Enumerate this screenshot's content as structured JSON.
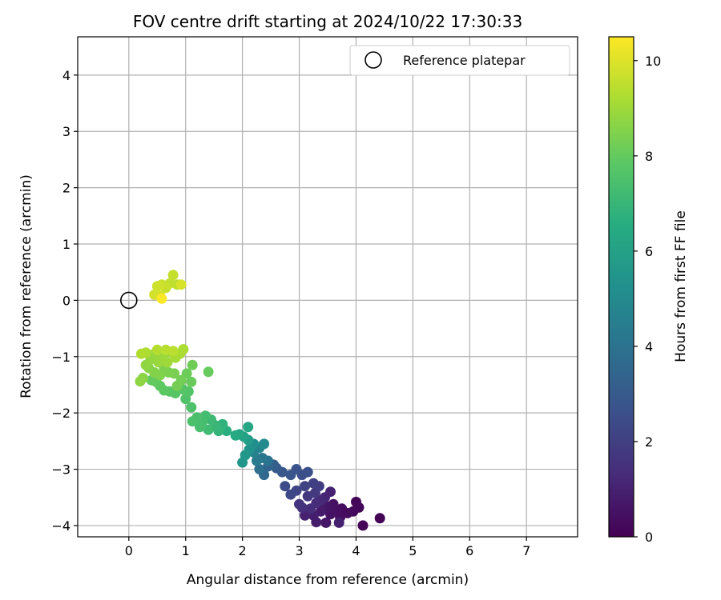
{
  "chart_data": {
    "type": "scatter",
    "title": "FOV centre drift starting at 2024/10/22 17:30:33",
    "xlabel": "Angular distance from reference (arcmin)",
    "ylabel": "Rotation from reference (arcmin)",
    "xlim": [
      -0.9,
      7.9
    ],
    "ylim": [
      -4.2,
      4.68
    ],
    "xticks": [
      "0",
      "1",
      "2",
      "3",
      "4",
      "5",
      "6",
      "7"
    ],
    "yticks": [
      "−4",
      "−3",
      "−2",
      "−1",
      "0",
      "1",
      "2",
      "3",
      "4"
    ],
    "grid": true,
    "legend": {
      "position": "top-right",
      "entries": [
        "Reference platepar"
      ]
    },
    "reference_point": {
      "x": 0,
      "y": 0
    },
    "colorbar": {
      "label": "Hours from first FF file",
      "colormap": "viridis",
      "range": [
        0,
        10.5
      ],
      "ticks": [
        "0",
        "2",
        "4",
        "6",
        "8",
        "10"
      ]
    },
    "points": [
      [
        4.42,
        -3.87,
        0.05
      ],
      [
        4.12,
        -4.0,
        0.1
      ],
      [
        4.0,
        -3.58,
        0.15
      ],
      [
        4.05,
        -3.68,
        0.2
      ],
      [
        3.95,
        -3.75,
        0.25
      ],
      [
        3.85,
        -3.78,
        0.3
      ],
      [
        3.75,
        -3.7,
        0.35
      ],
      [
        3.72,
        -3.85,
        0.4
      ],
      [
        3.66,
        -3.72,
        0.45
      ],
      [
        3.6,
        -3.62,
        0.5
      ],
      [
        3.55,
        -3.8,
        0.55
      ],
      [
        3.5,
        -3.66,
        0.6
      ],
      [
        3.47,
        -3.95,
        0.65
      ],
      [
        3.42,
        -3.6,
        0.7
      ],
      [
        3.38,
        -3.75,
        0.8
      ],
      [
        3.3,
        -3.94,
        0.85
      ],
      [
        3.25,
        -3.82,
        0.9
      ],
      [
        3.7,
        -3.95,
        0.95
      ],
      [
        3.1,
        -3.82,
        1.0
      ],
      [
        3.55,
        -3.4,
        1.05
      ],
      [
        3.45,
        -3.5,
        1.1
      ],
      [
        3.38,
        -3.55,
        1.2
      ],
      [
        3.3,
        -3.6,
        1.3
      ],
      [
        3.2,
        -3.7,
        1.4
      ],
      [
        3.05,
        -3.68,
        1.5
      ],
      [
        3.0,
        -3.62,
        1.6
      ],
      [
        3.15,
        -3.48,
        1.7
      ],
      [
        3.28,
        -3.42,
        1.8
      ],
      [
        3.35,
        -3.3,
        1.9
      ],
      [
        3.25,
        -3.25,
        2.0
      ],
      [
        3.1,
        -3.3,
        2.1
      ],
      [
        2.95,
        -3.38,
        2.2
      ],
      [
        2.85,
        -3.45,
        2.3
      ],
      [
        2.75,
        -3.3,
        2.4
      ],
      [
        3.05,
        -3.1,
        2.5
      ],
      [
        3.15,
        -3.05,
        2.6
      ],
      [
        2.95,
        -3.0,
        2.7
      ],
      [
        2.85,
        -3.1,
        2.8
      ],
      [
        2.7,
        -3.05,
        2.9
      ],
      [
        2.6,
        -2.98,
        3.0
      ],
      [
        2.55,
        -2.92,
        3.2
      ],
      [
        2.45,
        -2.95,
        3.4
      ],
      [
        2.38,
        -3.1,
        3.6
      ],
      [
        2.3,
        -3.0,
        3.8
      ],
      [
        2.45,
        -2.85,
        4.0
      ],
      [
        2.35,
        -2.8,
        4.2
      ],
      [
        2.25,
        -2.85,
        4.4
      ],
      [
        2.2,
        -2.7,
        4.6
      ],
      [
        2.3,
        -2.62,
        4.8
      ],
      [
        2.38,
        -2.55,
        5.0
      ],
      [
        2.2,
        -2.55,
        5.2
      ],
      [
        2.12,
        -2.65,
        5.4
      ],
      [
        2.0,
        -2.88,
        5.5
      ],
      [
        2.05,
        -2.75,
        5.6
      ],
      [
        2.1,
        -2.48,
        5.8
      ],
      [
        2.02,
        -2.42,
        6.0
      ],
      [
        1.95,
        -2.38,
        6.2
      ],
      [
        2.1,
        -2.25,
        6.3
      ],
      [
        1.88,
        -2.4,
        6.4
      ],
      [
        1.72,
        -2.32,
        6.6
      ],
      [
        1.65,
        -2.2,
        6.8
      ],
      [
        1.58,
        -2.32,
        6.9
      ],
      [
        1.52,
        -2.22,
        7.0
      ],
      [
        1.45,
        -2.12,
        7.1
      ],
      [
        1.4,
        -2.3,
        7.2
      ],
      [
        1.35,
        -2.05,
        7.3
      ],
      [
        1.3,
        -2.15,
        7.35
      ],
      [
        1.25,
        -2.25,
        7.4
      ],
      [
        1.2,
        -2.08,
        7.45
      ],
      [
        1.12,
        -2.15,
        7.5
      ],
      [
        1.1,
        -1.9,
        7.55
      ],
      [
        1.0,
        -1.75,
        7.6
      ],
      [
        1.05,
        -1.62,
        7.65
      ],
      [
        0.95,
        -1.58,
        7.7
      ],
      [
        0.82,
        -1.65,
        7.75
      ],
      [
        0.72,
        -1.62,
        7.8
      ],
      [
        0.62,
        -1.6,
        7.85
      ],
      [
        0.55,
        -1.52,
        7.9
      ],
      [
        0.48,
        -1.45,
        7.95
      ],
      [
        0.4,
        -1.42,
        8.0
      ],
      [
        1.4,
        -1.27,
        8.05
      ],
      [
        1.1,
        -1.45,
        8.1
      ],
      [
        1.02,
        -1.3,
        8.15
      ],
      [
        1.12,
        -1.15,
        8.2
      ],
      [
        0.92,
        -1.42,
        8.25
      ],
      [
        0.85,
        -1.52,
        8.3
      ],
      [
        0.8,
        -1.3,
        8.35
      ],
      [
        0.7,
        -1.28,
        8.4
      ],
      [
        0.62,
        -1.2,
        8.45
      ],
      [
        0.55,
        -1.33,
        8.5
      ],
      [
        0.45,
        -1.28,
        8.55
      ],
      [
        0.35,
        -1.2,
        8.6
      ],
      [
        0.25,
        -1.38,
        8.65
      ],
      [
        0.2,
        -1.44,
        8.7
      ],
      [
        0.3,
        -1.15,
        8.75
      ],
      [
        0.38,
        -1.05,
        8.8
      ],
      [
        0.45,
        -0.95,
        8.85
      ],
      [
        0.52,
        -1.1,
        8.9
      ],
      [
        0.6,
        -0.98,
        8.95
      ],
      [
        0.68,
        -1.1,
        9.0
      ],
      [
        0.75,
        -0.92,
        9.05
      ],
      [
        0.82,
        -1.02,
        9.1
      ],
      [
        0.9,
        -0.95,
        9.15
      ],
      [
        0.96,
        -0.87,
        9.2
      ],
      [
        0.3,
        -0.93,
        9.25
      ],
      [
        0.22,
        -0.95,
        9.3
      ],
      [
        0.5,
        -0.88,
        9.35
      ],
      [
        0.65,
        -0.88,
        9.4
      ],
      [
        0.78,
        -0.9,
        9.45
      ],
      [
        0.85,
        0.28,
        9.5
      ],
      [
        0.72,
        0.3,
        9.55
      ],
      [
        0.78,
        0.45,
        9.6
      ],
      [
        0.65,
        0.22,
        9.65
      ],
      [
        0.58,
        0.28,
        9.7
      ],
      [
        0.5,
        0.25,
        9.75
      ],
      [
        0.45,
        0.1,
        9.8
      ],
      [
        0.55,
        0.08,
        9.85
      ],
      [
        0.92,
        0.28,
        9.9
      ],
      [
        0.58,
        0.03,
        10.45
      ]
    ]
  }
}
